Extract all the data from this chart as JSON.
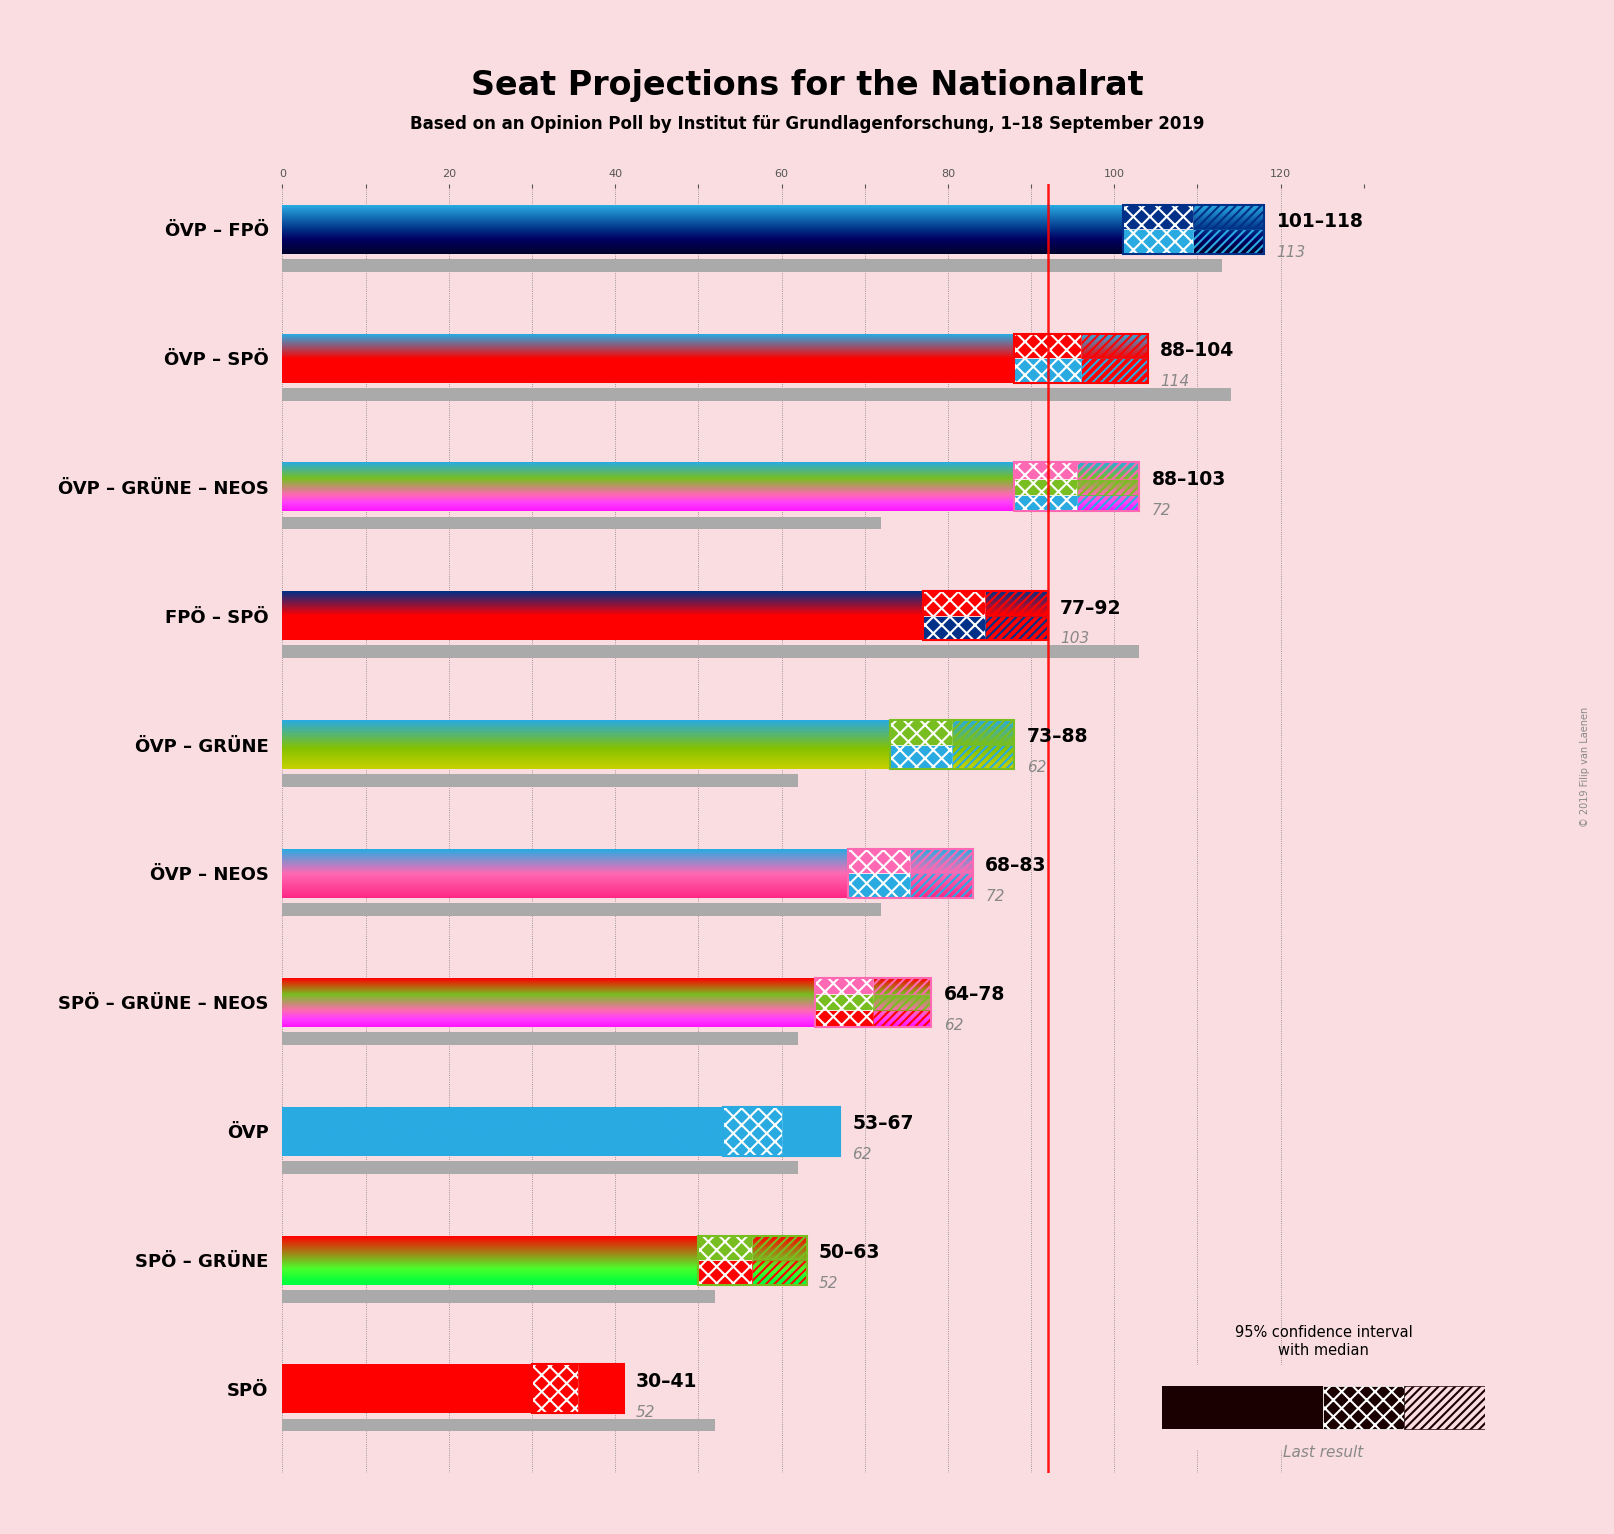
{
  "title": "Seat Projections for the Nationalrat",
  "subtitle": "Based on an Opinion Poll by Institut für Grundlagenforschung, 1–18 September 2019",
  "background_color": "#FADDE1",
  "majority_line": 92,
  "coalitions": [
    {
      "label": "ÖVP – FPÖ",
      "colors": [
        "#29ABE2",
        "#003087"
      ],
      "ci_low": 101,
      "ci_high": 118,
      "last_result": 113,
      "range_label": "101–118",
      "last_label": "113"
    },
    {
      "label": "ÖVP – SPÖ",
      "colors": [
        "#29ABE2",
        "#FF0000"
      ],
      "ci_low": 88,
      "ci_high": 104,
      "last_result": 114,
      "range_label": "88–104",
      "last_label": "114"
    },
    {
      "label": "ÖVP – GRÜNE – NEOS",
      "colors": [
        "#29ABE2",
        "#78BE20",
        "#FF69B4"
      ],
      "ci_low": 88,
      "ci_high": 103,
      "last_result": 72,
      "range_label": "88–103",
      "last_label": "72"
    },
    {
      "label": "FPÖ – SPÖ",
      "colors": [
        "#003087",
        "#FF0000"
      ],
      "ci_low": 77,
      "ci_high": 92,
      "last_result": 103,
      "range_label": "77–92",
      "last_label": "103"
    },
    {
      "label": "ÖVP – GRÜNE",
      "colors": [
        "#29ABE2",
        "#78BE20"
      ],
      "ci_low": 73,
      "ci_high": 88,
      "last_result": 62,
      "range_label": "73–88",
      "last_label": "62"
    },
    {
      "label": "ÖVP – NEOS",
      "colors": [
        "#29ABE2",
        "#FF69B4"
      ],
      "ci_low": 68,
      "ci_high": 83,
      "last_result": 72,
      "range_label": "68–83",
      "last_label": "72"
    },
    {
      "label": "SPÖ – GRÜNE – NEOS",
      "colors": [
        "#FF0000",
        "#78BE20",
        "#FF69B4"
      ],
      "ci_low": 64,
      "ci_high": 78,
      "last_result": 62,
      "range_label": "64–78",
      "last_label": "62"
    },
    {
      "label": "ÖVP",
      "colors": [
        "#29ABE2"
      ],
      "ci_low": 53,
      "ci_high": 67,
      "last_result": 62,
      "range_label": "53–67",
      "last_label": "62"
    },
    {
      "label": "SPÖ – GRÜNE",
      "colors": [
        "#FF0000",
        "#78BE20"
      ],
      "ci_low": 50,
      "ci_high": 63,
      "last_result": 52,
      "range_label": "50–63",
      "last_label": "52"
    },
    {
      "label": "SPÖ",
      "colors": [
        "#FF0000"
      ],
      "ci_low": 30,
      "ci_high": 41,
      "last_result": 52,
      "range_label": "30–41",
      "last_label": "52"
    }
  ],
  "xlim_max": 130,
  "majority_color": "#FF0000",
  "gray_color": "#AAAAAA",
  "label_color_range": "#000000",
  "label_color_last": "#888888",
  "watermark": "© 2019 Filip van Laenen"
}
